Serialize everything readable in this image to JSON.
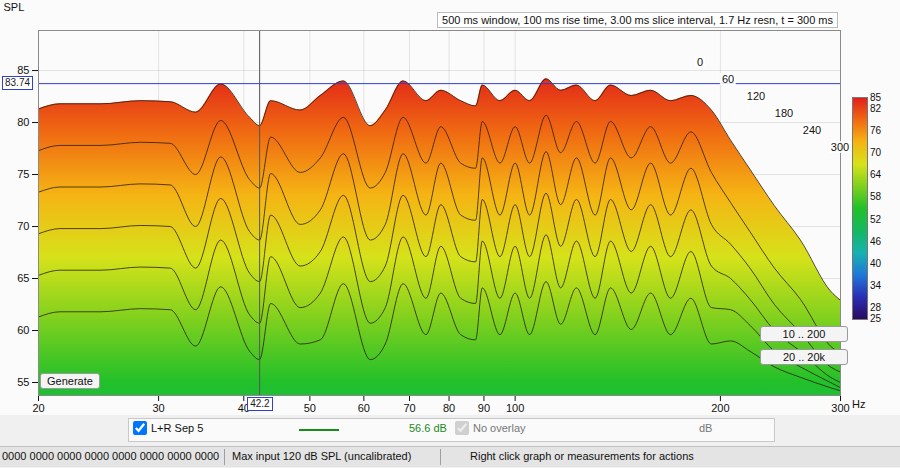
{
  "chart_data": {
    "type": "waterfall",
    "subtitle": "500 ms window, 100 ms rise time, 3.00 ms slice interval, 1.7 Hz resn, t = 300 ms",
    "y_label": "SPL",
    "x_label": "Hz",
    "log": "x",
    "grid": true,
    "x": [
      20,
      21.5,
      24.7,
      28.2,
      31.2,
      34,
      37,
      40.8,
      42.2,
      43.8,
      48.4,
      51.8,
      56,
      61.3,
      64.5,
      68.5,
      74,
      77.8,
      83.2,
      87.5,
      89.5,
      95,
      100,
      105,
      111,
      116.6,
      123,
      131,
      138,
      148,
      158,
      169,
      181,
      194,
      207,
      221,
      240,
      262,
      290,
      300
    ],
    "xlim": [
      20,
      300
    ],
    "xticks": [
      20,
      30,
      40,
      50,
      60,
      70,
      80,
      90,
      100,
      200,
      300
    ],
    "ylim": [
      53.75,
      88.85
    ],
    "yticks": [
      55,
      60,
      65,
      70,
      75,
      80,
      85
    ],
    "series": [
      {
        "t": 0,
        "values": [
          81.3,
          81.8,
          81.8,
          82.1,
          82.0,
          81.0,
          83.7,
          80.5,
          79.7,
          82.1,
          81.2,
          82.6,
          84.0,
          79.7,
          81.2,
          84.0,
          82.1,
          83.1,
          82.1,
          81.6,
          83.6,
          82.1,
          83.1,
          82.1,
          84.2,
          83.1,
          83.6,
          82.1,
          83.6,
          82.6,
          83.1,
          82.1,
          82.6,
          81.2,
          78.3,
          75.5,
          72.0,
          68.7,
          63.8,
          62.9
        ]
      },
      {
        "t": 60,
        "values": [
          77.3,
          77.8,
          77.8,
          78.1,
          78.0,
          75.0,
          80.2,
          74.5,
          73.7,
          78.6,
          75.2,
          76.6,
          80.5,
          73.7,
          75.2,
          80.5,
          76.1,
          79.6,
          76.1,
          75.6,
          80.1,
          76.1,
          79.6,
          76.1,
          80.7,
          77.1,
          80.1,
          76.1,
          80.1,
          76.6,
          79.6,
          76.1,
          79.1,
          75.2,
          72.3,
          69.5,
          66.0,
          63.0,
          58.5,
          57.8
        ]
      },
      {
        "t": 120,
        "values": [
          73.3,
          73.8,
          73.8,
          74.1,
          74.0,
          70.0,
          76.7,
          69.5,
          68.7,
          75.1,
          70.2,
          71.6,
          77.0,
          68.7,
          70.2,
          77.0,
          71.1,
          76.1,
          71.1,
          70.6,
          76.6,
          71.1,
          76.1,
          71.1,
          77.2,
          72.1,
          76.6,
          71.1,
          76.6,
          71.6,
          76.1,
          71.1,
          75.6,
          70.2,
          68.3,
          66.0,
          62.5,
          59.8,
          56.5,
          56.0
        ]
      },
      {
        "t": 180,
        "values": [
          69.3,
          69.8,
          69.8,
          70.1,
          70.0,
          66.0,
          72.7,
          65.5,
          64.7,
          71.1,
          66.2,
          67.6,
          73.0,
          64.7,
          66.2,
          73.0,
          67.1,
          72.1,
          67.1,
          66.6,
          72.6,
          67.1,
          72.1,
          67.1,
          73.2,
          68.1,
          72.6,
          67.1,
          72.6,
          67.6,
          72.1,
          67.1,
          71.6,
          66.2,
          65.0,
          63.0,
          60.0,
          58.0,
          55.5,
          55.0
        ]
      },
      {
        "t": 240,
        "values": [
          65.3,
          65.8,
          65.8,
          66.1,
          66.0,
          62.0,
          68.7,
          61.5,
          60.7,
          67.1,
          62.2,
          63.6,
          69.0,
          60.7,
          62.2,
          69.0,
          63.1,
          68.1,
          63.1,
          62.6,
          68.6,
          63.1,
          68.1,
          63.1,
          69.2,
          64.1,
          68.6,
          63.1,
          68.6,
          63.6,
          68.1,
          63.1,
          67.6,
          62.2,
          62.0,
          60.5,
          58.0,
          56.5,
          55.0,
          54.5
        ]
      },
      {
        "t": 300,
        "values": [
          61.3,
          61.8,
          61.8,
          62.1,
          62.0,
          58.5,
          64.2,
          58.0,
          57.2,
          62.6,
          58.7,
          59.1,
          64.5,
          57.2,
          58.7,
          64.5,
          59.6,
          63.6,
          59.6,
          59.1,
          64.1,
          59.6,
          63.6,
          59.6,
          64.7,
          60.6,
          64.1,
          59.6,
          64.1,
          60.1,
          63.6,
          59.6,
          63.1,
          58.7,
          59.0,
          58.0,
          56.5,
          55.5,
          54.5,
          54.2
        ]
      }
    ],
    "colorbar": {
      "range": [
        25,
        85
      ],
      "ticks": [
        25,
        28,
        34,
        40,
        46,
        52,
        58,
        64,
        70,
        76,
        82,
        85
      ],
      "colors": [
        "#2a0a5e",
        "#2b2fb5",
        "#1f78d8",
        "#17b2b0",
        "#14b860",
        "#22c02a",
        "#7fd01e",
        "#d6e21a",
        "#f5b414",
        "#f06a12",
        "#e0201a"
      ]
    },
    "cursor": {
      "x": 42.2,
      "y": 83.74
    },
    "buttons": [
      "Generate",
      "10 .. 200",
      "20 .. 20k"
    ],
    "measurement": {
      "name": "L+R Sep 5",
      "level": "56.6 dB",
      "color": "#1a8a1a"
    },
    "overlay": {
      "name": "No overlay",
      "unit": "dB"
    },
    "status_bar": [
      "0000 0000 0000 0000 0000 0000 0000 0000",
      "Max input 120 dB SPL (uncalibrated)",
      "Right click graph or measurements for actions"
    ]
  }
}
